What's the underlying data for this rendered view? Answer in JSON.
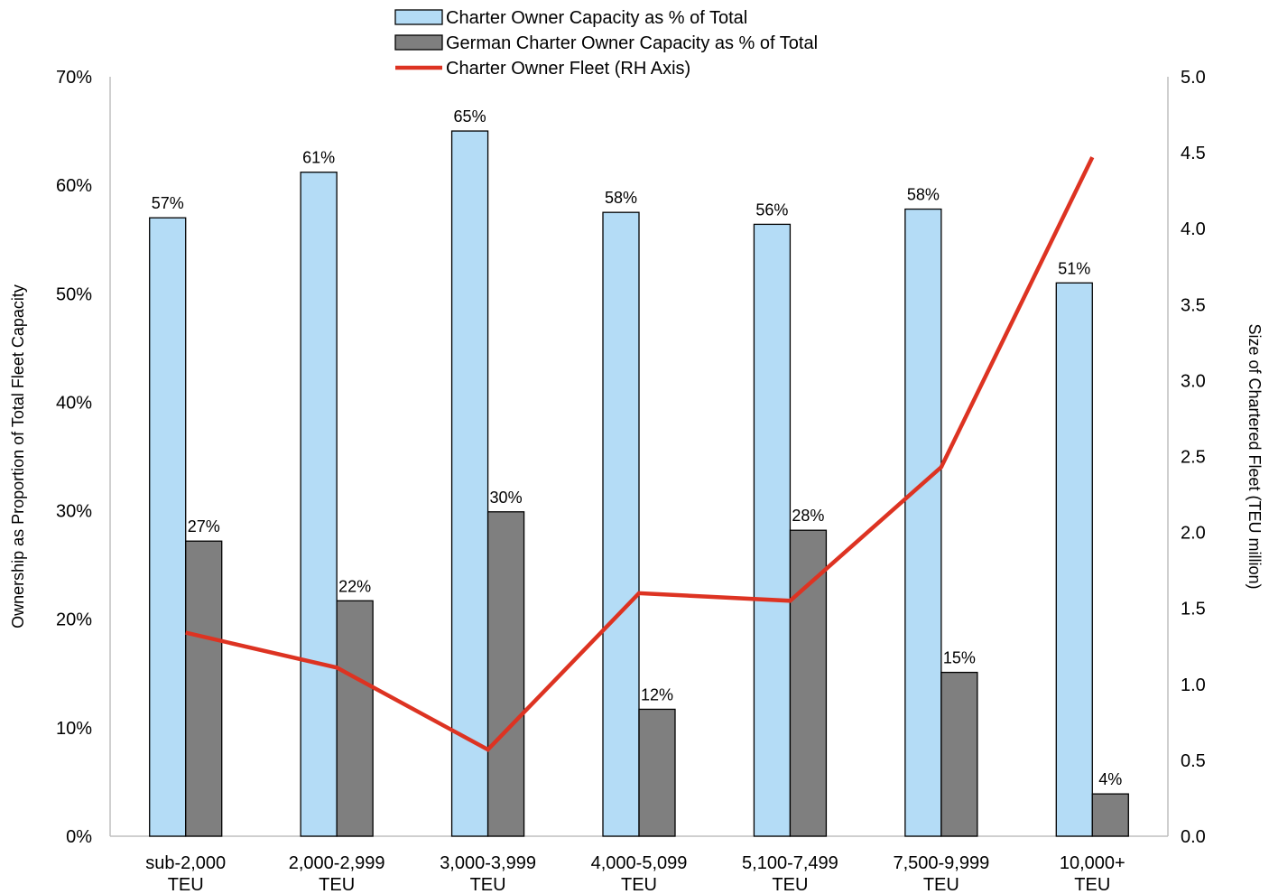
{
  "chart_data": {
    "type": "bar",
    "categories": [
      [
        "sub-2,000",
        "TEU"
      ],
      [
        "2,000-2,999",
        "TEU"
      ],
      [
        "3,000-3,999",
        "TEU"
      ],
      [
        "4,000-5,099",
        "TEU"
      ],
      [
        "5,100-7,499",
        "TEU"
      ],
      [
        "7,500-9,999",
        "TEU"
      ],
      [
        "10,000+",
        "TEU"
      ]
    ],
    "series": [
      {
        "name": "Charter Owner Capacity as % of Total",
        "kind": "bar",
        "axis": "left",
        "color": "#b4dcf6",
        "values": [
          57,
          61.2,
          65,
          57.5,
          56.4,
          57.8,
          51
        ],
        "labels": [
          "57%",
          "61%",
          "65%",
          "58%",
          "56%",
          "58%",
          "51%"
        ]
      },
      {
        "name": "German Charter Owner Capacity as % of Total",
        "kind": "bar",
        "axis": "left",
        "color": "#7f7f7f",
        "values": [
          27.2,
          21.7,
          29.9,
          11.7,
          28.2,
          15.1,
          3.9
        ],
        "labels": [
          "27%",
          "22%",
          "30%",
          "12%",
          "28%",
          "15%",
          "4%"
        ]
      },
      {
        "name": "Charter Owner Fleet (RH Axis)",
        "kind": "line",
        "axis": "right",
        "color": "#dd3322",
        "values": [
          1.34,
          1.11,
          0.57,
          1.6,
          1.55,
          2.43,
          4.47
        ]
      }
    ],
    "y_left": {
      "label": "Ownership as Proportion of Total Fleet Capacity",
      "ylim": [
        0,
        70
      ],
      "ticks": [
        0,
        10,
        20,
        30,
        40,
        50,
        60,
        70
      ],
      "tick_labels": [
        "0%",
        "10%",
        "20%",
        "30%",
        "40%",
        "50%",
        "60%",
        "70%"
      ]
    },
    "y_right": {
      "label": "Size of Chartered Fleet (TEU million)",
      "ylim": [
        0,
        5
      ],
      "ticks": [
        0,
        0.5,
        1,
        1.5,
        2,
        2.5,
        3,
        3.5,
        4,
        4.5,
        5
      ],
      "tick_labels": [
        "0.0",
        "0.5",
        "1.0",
        "1.5",
        "2.0",
        "2.5",
        "3.0",
        "3.5",
        "4.0",
        "4.5",
        "5.0"
      ]
    },
    "grid": false,
    "legend_position": "top-center"
  }
}
